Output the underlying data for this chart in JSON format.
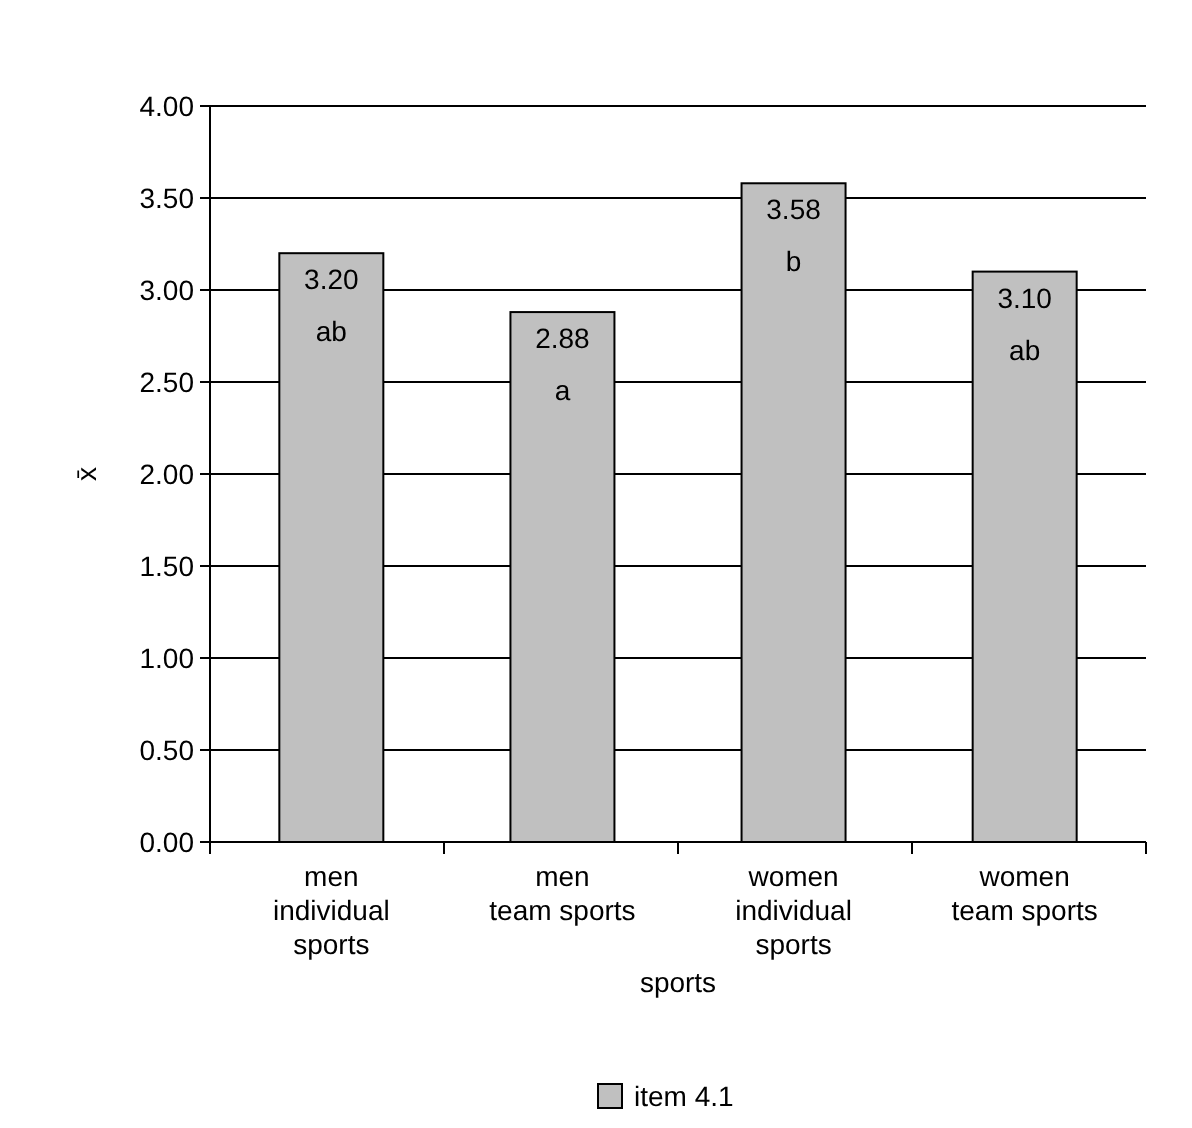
{
  "chart_data": {
    "type": "bar",
    "xlabel": "sports",
    "ylabel": "x̄",
    "categories": [
      "men individual sports",
      "men team sports",
      "women individual sports",
      "women team sports"
    ],
    "series": [
      {
        "name": "item 4.1",
        "color": "#c0c0c0",
        "values": [
          3.2,
          2.88,
          3.58,
          3.1
        ],
        "value_labels": [
          "3.20",
          "2.88",
          "3.58",
          "3.10"
        ]
      }
    ],
    "annotations": [
      {
        "text": "ab",
        "x": "men individual sports",
        "y": 3.2
      },
      {
        "text": "a",
        "x": "men team sports",
        "y": 2.88
      },
      {
        "text": "b",
        "x": "women individual sports",
        "y": 3.58
      },
      {
        "text": "ab",
        "x": "women team sports",
        "y": 3.1
      }
    ],
    "ylim": [
      0,
      4
    ],
    "yticks": [
      {
        "value": 0,
        "label": "0.00"
      },
      {
        "value": 0.5,
        "label": "0.50"
      },
      {
        "value": 1,
        "label": "1.00"
      },
      {
        "value": 1.5,
        "label": "1.50"
      },
      {
        "value": 2,
        "label": "2.00"
      },
      {
        "value": 2.5,
        "label": "2.50"
      },
      {
        "value": 3,
        "label": "3.00"
      },
      {
        "value": 3.5,
        "label": "3.50"
      },
      {
        "value": 4,
        "label": "4.00"
      }
    ],
    "grid": "y",
    "legend": "bottom"
  }
}
